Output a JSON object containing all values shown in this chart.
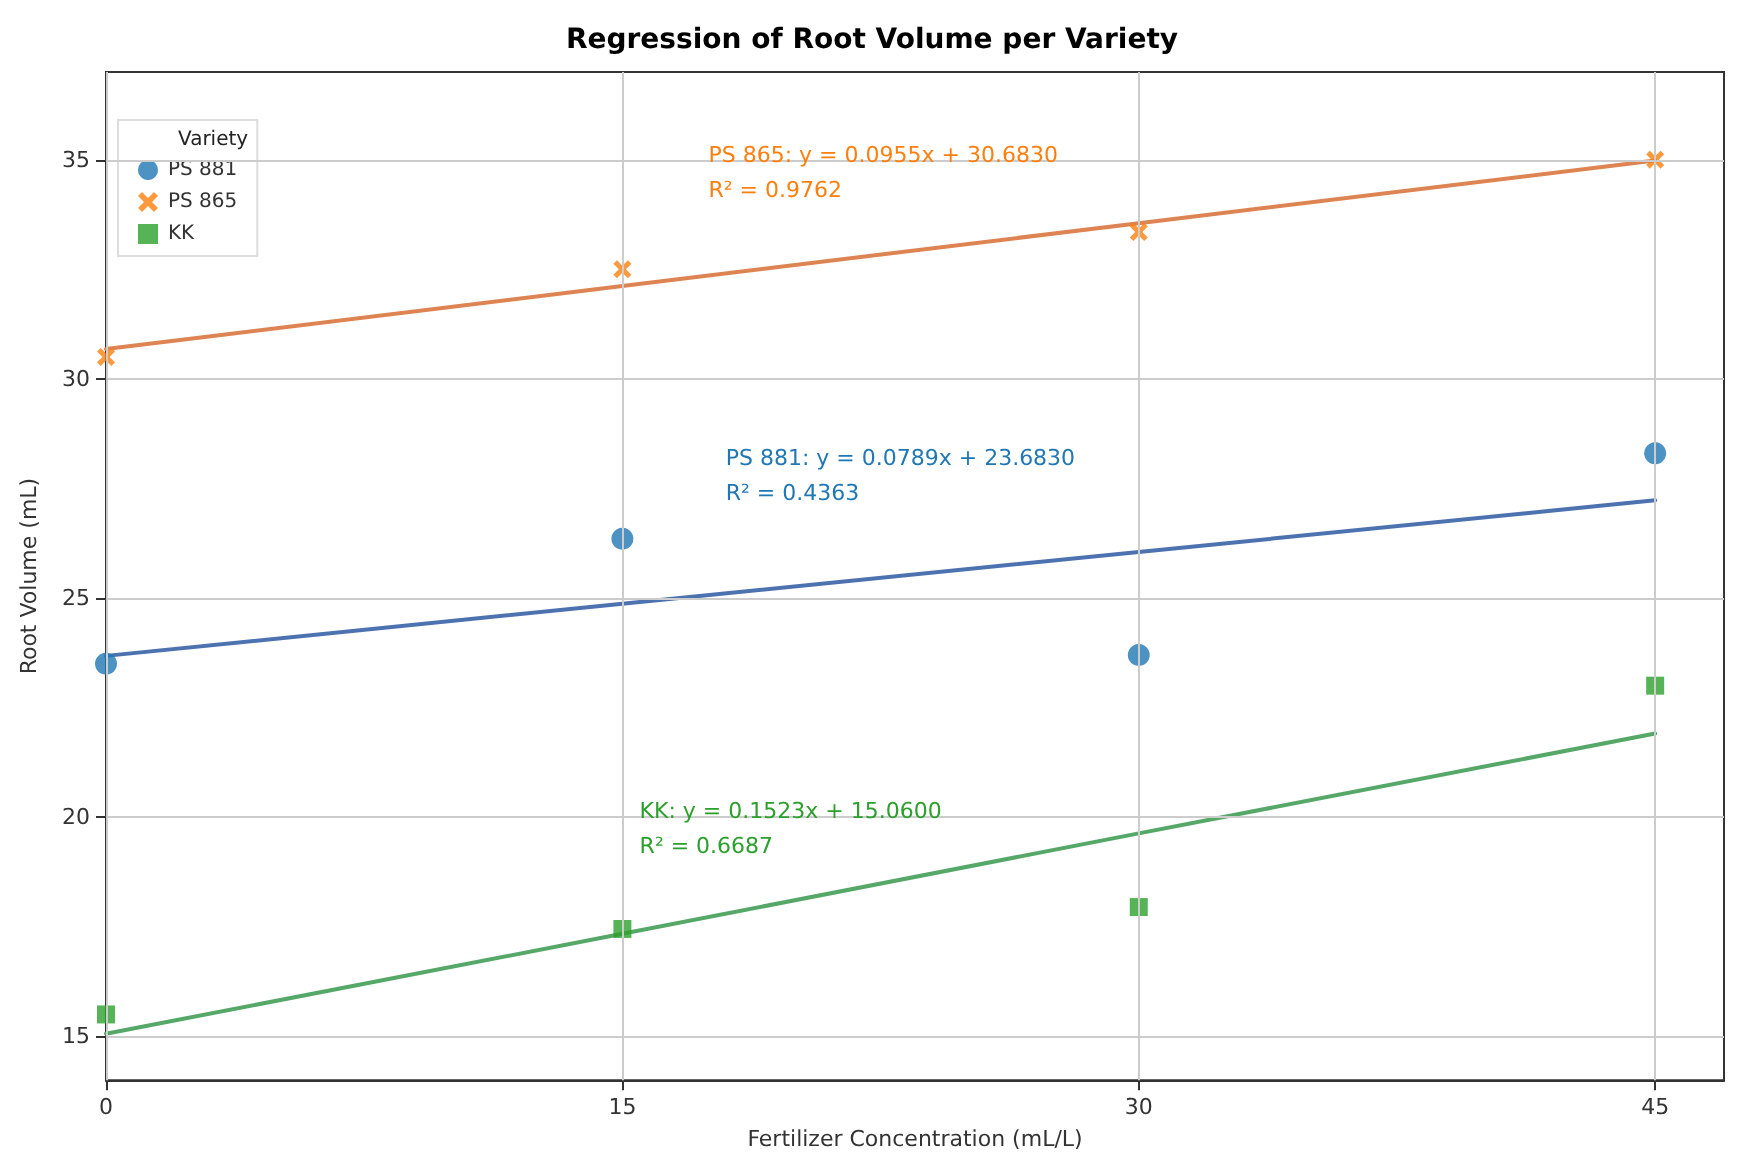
{
  "chart_data": {
    "type": "scatter",
    "title": "Regression of Root Volume per Variety",
    "xlabel": "Fertilizer Concentration (mL/L)",
    "ylabel": "Root Volume (mL)",
    "legend_title": "Variety",
    "x": [
      0,
      15,
      30,
      45
    ],
    "series": [
      {
        "name": "PS 881",
        "marker": "circle",
        "color": "#1f77b4",
        "values": [
          23.5,
          26.35,
          23.7,
          28.3
        ]
      },
      {
        "name": "PS 865",
        "marker": "cross",
        "color": "#ff7f0e",
        "values": [
          30.5,
          32.5,
          33.35,
          35.0
        ]
      },
      {
        "name": "KK",
        "marker": "square",
        "color": "#2ca02c",
        "values": [
          15.5,
          17.45,
          17.95,
          23.0
        ]
      },
      {
        "type": "line",
        "marker": "none",
        "color": "#4c72b0",
        "values": [
          23.68,
          24.87,
          26.05,
          27.23
        ]
      },
      {
        "type": "line",
        "marker": "none",
        "color": "#dd8452",
        "values": [
          30.68,
          32.12,
          33.55,
          34.98
        ]
      },
      {
        "type": "line",
        "marker": "none",
        "color": "#55a868",
        "values": [
          15.06,
          17.34,
          19.63,
          21.91
        ]
      }
    ],
    "annotations": [
      "PS 865: y = 0.0955x + 30.6830",
      "R² = 0.9762",
      "PS 881: y = 0.0789x + 23.6830",
      "R² = 0.4363",
      "KK: y = 0.1523x + 15.0600",
      "R² = 0.6687"
    ],
    "xlim": [
      0,
      47
    ],
    "xticks": [
      0,
      15,
      30,
      45
    ],
    "ylim": [
      14,
      37
    ],
    "yticks": [
      15,
      20,
      25,
      30,
      35
    ],
    "grid": true,
    "legend": "top left",
    "line_style": "solid"
  }
}
